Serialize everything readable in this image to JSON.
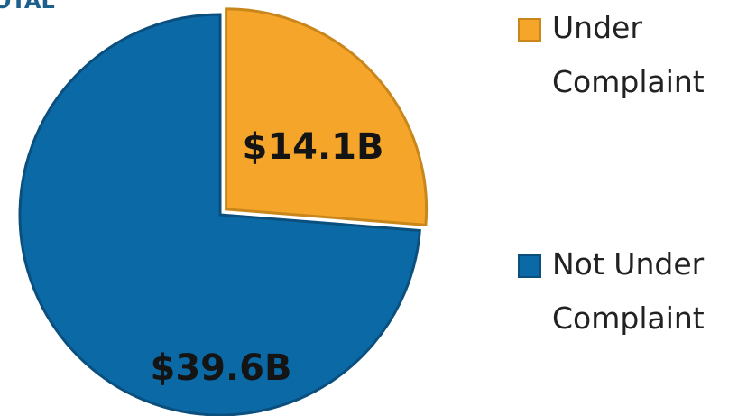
{
  "chart_data": {
    "type": "pie",
    "title": "OTAL",
    "categories": [
      "Under Complaint",
      "Not Under Complaint"
    ],
    "values": [
      14.1,
      39.6
    ],
    "value_labels": [
      "$14.1B",
      "$39.6B"
    ],
    "colors": [
      "#f4a52a",
      "#0b6aa6"
    ],
    "legend": "right"
  }
}
